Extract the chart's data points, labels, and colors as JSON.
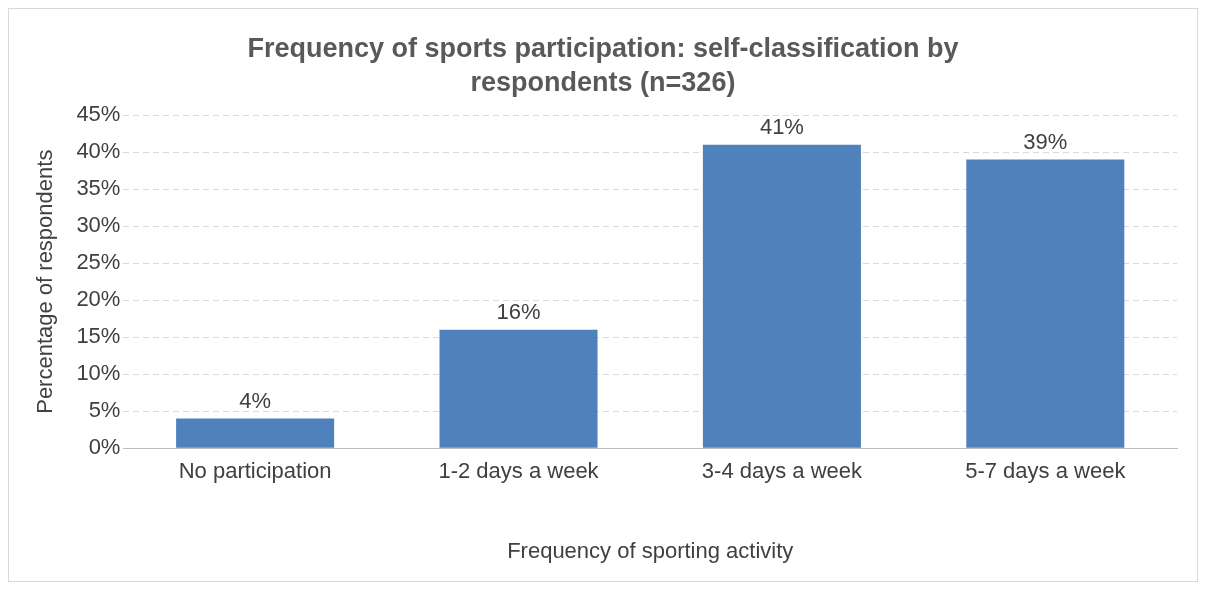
{
  "chart_data": {
    "type": "bar",
    "title": "Frequency of sports participation: self-classification by respondents (n=326)",
    "xlabel": "Frequency of sporting activity",
    "ylabel": "Percentage of respondents",
    "categories": [
      "No participation",
      "1-2 days a week",
      "3-4 days a week",
      "5-7 days a week"
    ],
    "values": [
      4,
      16,
      41,
      39
    ],
    "value_labels": [
      "4%",
      "16%",
      "41%",
      "39%"
    ],
    "color": "#4f81bd",
    "ylim": [
      0,
      45
    ],
    "yticks": [
      {
        "value": 0,
        "label": "0%"
      },
      {
        "value": 5,
        "label": "5%"
      },
      {
        "value": 10,
        "label": "10%"
      },
      {
        "value": 15,
        "label": "15%"
      },
      {
        "value": 20,
        "label": "20%"
      },
      {
        "value": 25,
        "label": "25%"
      },
      {
        "value": 30,
        "label": "30%"
      },
      {
        "value": 35,
        "label": "35%"
      },
      {
        "value": 40,
        "label": "40%"
      },
      {
        "value": 45,
        "label": "45%"
      }
    ],
    "grid": "y",
    "legend": false
  }
}
